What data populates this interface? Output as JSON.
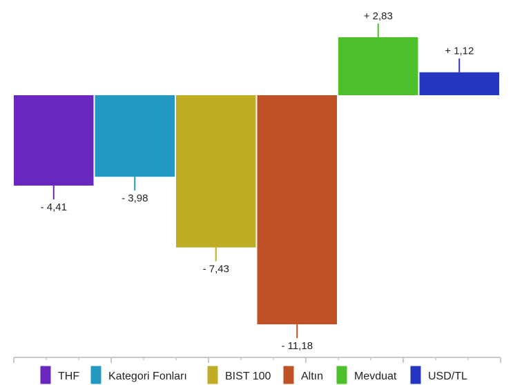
{
  "chart_data": {
    "type": "bar",
    "categories": [
      "THF",
      "Kategori Fonları",
      "BIST 100",
      "Altın",
      "Mevduat",
      "USD/TL"
    ],
    "values": [
      -4.41,
      -3.98,
      -7.43,
      -11.18,
      2.83,
      1.12
    ],
    "value_labels": [
      "- 4,41",
      "- 3,98",
      "- 7,43",
      "- 11,18",
      "+ 2,83",
      "+ 1,12"
    ],
    "colors": [
      "#6a27c0",
      "#2398c0",
      "#bfad26",
      "#c05025",
      "#4cc02a",
      "#2536c0"
    ],
    "title": "",
    "xlabel": "",
    "ylabel": "",
    "grid": false,
    "legend_position": "bottom"
  }
}
